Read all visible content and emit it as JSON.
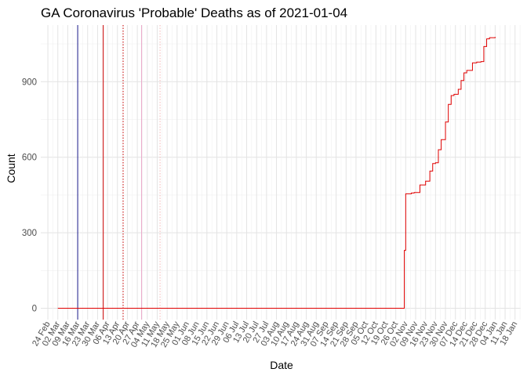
{
  "chart_data": {
    "type": "line",
    "title": "GA Coronavirus 'Probable' Deaths as of 2021-01-04",
    "xlabel": "Date",
    "ylabel": "Count",
    "ylim": [
      -45,
      1125
    ],
    "y_ticks": [
      0,
      300,
      600,
      900
    ],
    "xlim": [
      "2020-02-19",
      "2021-01-22"
    ],
    "x_tick_labels": [
      {
        "date": "2020-02-24",
        "label": "24 Feb"
      },
      {
        "date": "2020-03-02",
        "label": "02 Mar"
      },
      {
        "date": "2020-03-09",
        "label": "09 Mar"
      },
      {
        "date": "2020-03-16",
        "label": "16 Mar"
      },
      {
        "date": "2020-03-23",
        "label": "23 Mar"
      },
      {
        "date": "2020-03-30",
        "label": "30 Mar"
      },
      {
        "date": "2020-04-06",
        "label": "06 Apr"
      },
      {
        "date": "2020-04-13",
        "label": "13 Apr"
      },
      {
        "date": "2020-04-20",
        "label": "20 Apr"
      },
      {
        "date": "2020-04-27",
        "label": "27 Apr"
      },
      {
        "date": "2020-05-04",
        "label": "04 May"
      },
      {
        "date": "2020-05-11",
        "label": "11 May"
      },
      {
        "date": "2020-05-18",
        "label": "18 May"
      },
      {
        "date": "2020-05-25",
        "label": "25 May"
      },
      {
        "date": "2020-06-01",
        "label": "01 Jun"
      },
      {
        "date": "2020-06-08",
        "label": "08 Jun"
      },
      {
        "date": "2020-06-15",
        "label": "15 Jun"
      },
      {
        "date": "2020-06-22",
        "label": "22 Jun"
      },
      {
        "date": "2020-06-29",
        "label": "29 Jun"
      },
      {
        "date": "2020-07-06",
        "label": "06 Jul"
      },
      {
        "date": "2020-07-13",
        "label": "13 Jul"
      },
      {
        "date": "2020-07-20",
        "label": "20 Jul"
      },
      {
        "date": "2020-07-27",
        "label": "27 Jul"
      },
      {
        "date": "2020-08-03",
        "label": "03 Aug"
      },
      {
        "date": "2020-08-10",
        "label": "10 Aug"
      },
      {
        "date": "2020-08-17",
        "label": "17 Aug"
      },
      {
        "date": "2020-08-24",
        "label": "24 Aug"
      },
      {
        "date": "2020-08-31",
        "label": "31 Aug"
      },
      {
        "date": "2020-09-07",
        "label": "07 Sep"
      },
      {
        "date": "2020-09-14",
        "label": "14 Sep"
      },
      {
        "date": "2020-09-21",
        "label": "21 Sep"
      },
      {
        "date": "2020-09-28",
        "label": "28 Sep"
      },
      {
        "date": "2020-10-05",
        "label": "05 Oct"
      },
      {
        "date": "2020-10-12",
        "label": "12 Oct"
      },
      {
        "date": "2020-10-19",
        "label": "19 Oct"
      },
      {
        "date": "2020-10-26",
        "label": "26 Oct"
      },
      {
        "date": "2020-11-02",
        "label": "02 Nov"
      },
      {
        "date": "2020-11-09",
        "label": "09 Nov"
      },
      {
        "date": "2020-11-16",
        "label": "16 Nov"
      },
      {
        "date": "2020-11-23",
        "label": "23 Nov"
      },
      {
        "date": "2020-11-30",
        "label": "30 Nov"
      },
      {
        "date": "2020-12-07",
        "label": "07 Dec"
      },
      {
        "date": "2020-12-14",
        "label": "14 Dec"
      },
      {
        "date": "2020-12-21",
        "label": "21 Dec"
      },
      {
        "date": "2020-12-28",
        "label": "28 Dec"
      },
      {
        "date": "2021-01-04",
        "label": "04 Jan"
      },
      {
        "date": "2021-01-11",
        "label": "11 Jan"
      },
      {
        "date": "2021-01-18",
        "label": "18 Jan"
      }
    ],
    "grid": true,
    "series": [
      {
        "color": "#e00000",
        "x": [
          "2020-03-02",
          "2020-10-31",
          "2020-11-01",
          "2020-11-02",
          "2020-11-06",
          "2020-11-08",
          "2020-11-12",
          "2020-11-16",
          "2020-11-19",
          "2020-11-21",
          "2020-11-23",
          "2020-11-25",
          "2020-11-27",
          "2020-11-30",
          "2020-12-02",
          "2020-12-04",
          "2020-12-06",
          "2020-12-09",
          "2020-12-11",
          "2020-12-13",
          "2020-12-15",
          "2020-12-17",
          "2020-12-19",
          "2020-12-22",
          "2020-12-25",
          "2020-12-27",
          "2020-12-29",
          "2020-12-31",
          "2021-01-02",
          "2021-01-04"
        ],
        "y": [
          0,
          0,
          230,
          455,
          458,
          460,
          490,
          505,
          545,
          575,
          578,
          630,
          670,
          740,
          810,
          845,
          850,
          870,
          905,
          935,
          945,
          945,
          975,
          978,
          980,
          1040,
          1070,
          1075,
          1075,
          1078
        ]
      }
    ],
    "reference_lines": [
      {
        "date": "2020-03-16",
        "color": "#1a1a8c",
        "style": "solid"
      },
      {
        "date": "2020-04-03",
        "color": "#cc0000",
        "style": "solid"
      },
      {
        "date": "2020-04-17",
        "color": "#cc0000",
        "style": "dotted"
      },
      {
        "date": "2020-04-30",
        "color": "#e9a8c8",
        "style": "solid"
      },
      {
        "date": "2020-05-13",
        "color": "#f3b7b7",
        "style": "dotted"
      }
    ]
  }
}
